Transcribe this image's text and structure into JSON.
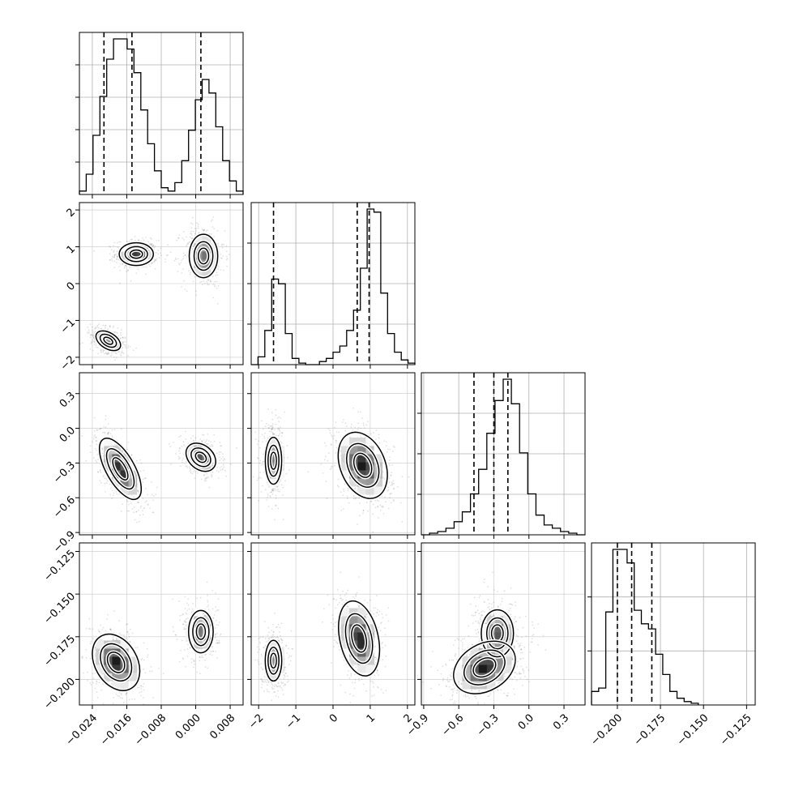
{
  "chart_data": {
    "type": "corner",
    "grid": true,
    "parameters": [
      {
        "range": [
          -0.027,
          0.011
        ],
        "ticks": [
          -0.024,
          -0.016,
          -0.008,
          0.0,
          0.008
        ],
        "tick_labels": [
          "−0.024",
          "−0.016",
          "−0.008",
          "0.000",
          "0.008"
        ],
        "quantiles": [
          -0.0213,
          -0.0148,
          0.0012
        ],
        "hist_edges": [
          -0.027,
          0.011
        ],
        "hist_counts": [
          0.02,
          0.12,
          0.35,
          0.58,
          0.8,
          0.92,
          0.92,
          0.86,
          0.72,
          0.5,
          0.3,
          0.14,
          0.04,
          0.02,
          0.07,
          0.2,
          0.38,
          0.56,
          0.68,
          0.6,
          0.4,
          0.2,
          0.08,
          0.02
        ],
        "hist_max_ticks": 4
      },
      {
        "range": [
          -2.2,
          2.2
        ],
        "ticks": [
          -2,
          -1,
          0,
          1,
          2
        ],
        "tick_labels": [
          "−2",
          "−1",
          "0",
          "1",
          "2"
        ],
        "quantiles": [
          -1.6,
          0.65,
          0.97
        ],
        "hist_edges": [
          -2.2,
          2.2
        ],
        "hist_counts": [
          0.0,
          0.05,
          0.22,
          0.55,
          0.52,
          0.2,
          0.04,
          0.01,
          0.0,
          0.0,
          0.02,
          0.04,
          0.08,
          0.12,
          0.22,
          0.35,
          0.62,
          1.0,
          0.98,
          0.46,
          0.2,
          0.08,
          0.03,
          0.01
        ],
        "hist_max_ticks": 3
      },
      {
        "range": [
          -0.92,
          0.48
        ],
        "ticks": [
          -0.9,
          -0.6,
          -0.3,
          0.0,
          0.3
        ],
        "tick_labels": [
          "−0.9",
          "−0.6",
          "−0.3",
          "0.0",
          "0.3"
        ],
        "quantiles": [
          -0.47,
          -0.3,
          -0.18
        ],
        "hist_edges": [
          -0.92,
          0.48
        ],
        "hist_counts": [
          0.0,
          0.01,
          0.02,
          0.04,
          0.08,
          0.14,
          0.25,
          0.4,
          0.62,
          0.82,
          0.95,
          0.8,
          0.5,
          0.25,
          0.12,
          0.06,
          0.04,
          0.02,
          0.01,
          0.0
        ],
        "hist_max_ticks": 3
      },
      {
        "range": [
          -0.215,
          -0.12
        ],
        "ticks": [
          -0.2,
          -0.175,
          -0.15,
          -0.125
        ],
        "tick_labels": [
          "−0.200",
          "−0.175",
          "−0.150",
          "−0.125"
        ],
        "y_tick_labels": [
          "−0.125",
          "−0.150",
          "−0.175",
          "−0.200"
        ],
        "quantiles": [
          -0.2,
          -0.1917,
          -0.18
        ],
        "hist_edges": [
          -0.215,
          -0.153
        ],
        "hist_counts": [
          0.08,
          0.1,
          0.55,
          0.92,
          0.92,
          0.84,
          0.56,
          0.48,
          0.45,
          0.3,
          0.18,
          0.08,
          0.04,
          0.02,
          0.01
        ],
        "hist_max_ticks": 2
      }
    ],
    "pairs": [
      {
        "row": 1,
        "col": 0,
        "clusters": [
          {
            "x": -0.0138,
            "y": 0.8,
            "sx": 0.0018,
            "sy": 0.14,
            "rho": 0.0,
            "w": 1.0
          },
          {
            "x": 0.0018,
            "y": 0.75,
            "sx": 0.0018,
            "sy": 0.32,
            "rho": 0.0,
            "w": 0.7
          },
          {
            "x": -0.0203,
            "y": -1.55,
            "sx": 0.0015,
            "sy": 0.14,
            "rho": -0.45,
            "w": 0.75
          }
        ]
      },
      {
        "row": 2,
        "col": 0,
        "clusters": [
          {
            "x": -0.0175,
            "y": -0.35,
            "sx": 0.0022,
            "sy": 0.12,
            "rho": -0.65,
            "w": 1.0
          },
          {
            "x": 0.0012,
            "y": -0.25,
            "sx": 0.0017,
            "sy": 0.06,
            "rho": -0.3,
            "w": 0.85
          }
        ]
      },
      {
        "row": 2,
        "col": 1,
        "clusters": [
          {
            "x": -1.6,
            "y": -0.28,
            "sx": 0.12,
            "sy": 0.11,
            "rho": 0.0,
            "w": 0.7
          },
          {
            "x": 0.8,
            "y": -0.32,
            "sx": 0.3,
            "sy": 0.13,
            "rho": -0.3,
            "w": 1.0
          }
        ]
      },
      {
        "row": 3,
        "col": 0,
        "clusters": [
          {
            "x": -0.0185,
            "y": -0.19,
            "sx": 0.0025,
            "sy": 0.0075,
            "rho": -0.3,
            "w": 1.0
          },
          {
            "x": 0.0012,
            "y": -0.172,
            "sx": 0.0015,
            "sy": 0.0065,
            "rho": 0.0,
            "w": 0.75
          }
        ]
      },
      {
        "row": 3,
        "col": 1,
        "clusters": [
          {
            "x": -1.6,
            "y": -0.189,
            "sx": 0.13,
            "sy": 0.007,
            "rho": 0.0,
            "w": 0.6
          },
          {
            "x": 0.7,
            "y": -0.176,
            "sx": 0.25,
            "sy": 0.01,
            "rho": -0.3,
            "w": 1.0
          }
        ]
      },
      {
        "row": 3,
        "col": 2,
        "clusters": [
          {
            "x": -0.27,
            "y": -0.173,
            "sx": 0.07,
            "sy": 0.007,
            "rho": 0.0,
            "w": 0.8
          },
          {
            "x": -0.38,
            "y": -0.193,
            "sx": 0.12,
            "sy": 0.007,
            "rho": 0.3,
            "w": 1.0
          }
        ]
      }
    ]
  }
}
